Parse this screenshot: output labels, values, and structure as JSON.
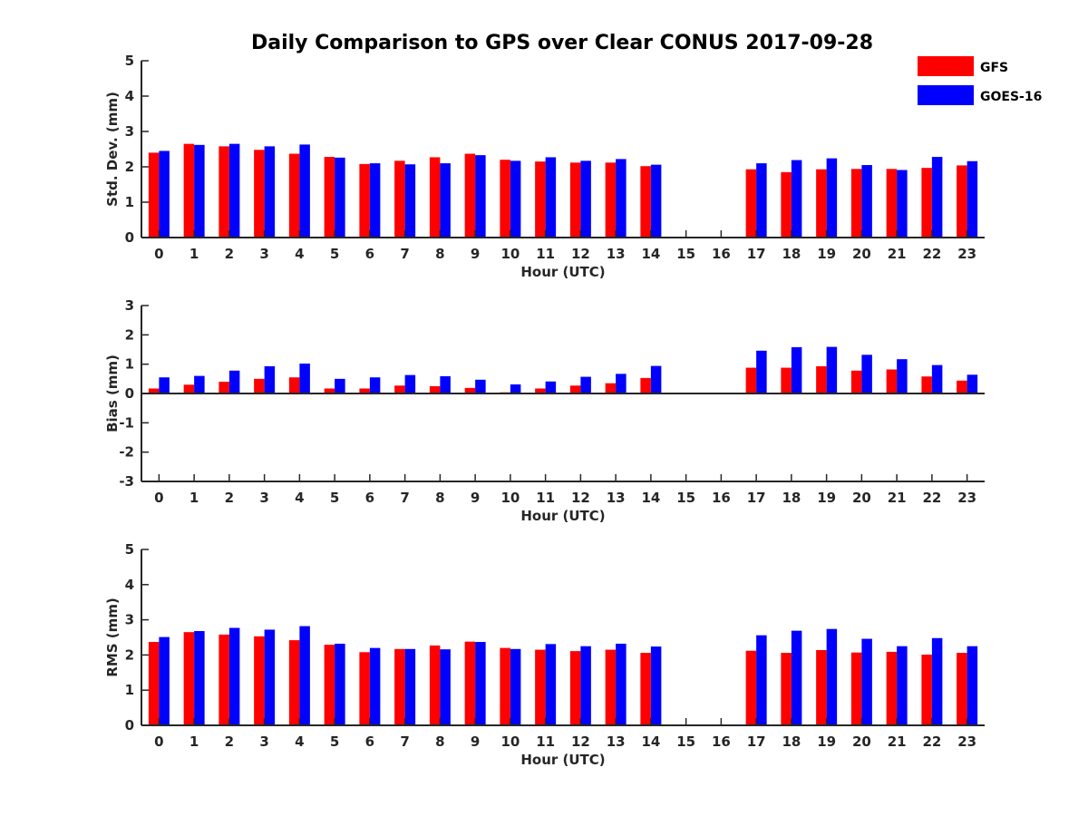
{
  "title": "Daily Comparison to GPS over Clear CONUS 2017-09-28",
  "legend": [
    {
      "name": "GFS",
      "color": "#ff0000"
    },
    {
      "name": "GOES-16",
      "color": "#0000ff"
    }
  ],
  "chart_data": [
    {
      "type": "bar",
      "ylabel": "Std. Dev. (mm)",
      "xlabel": "Hour (UTC)",
      "ylim": [
        0,
        5
      ],
      "yticks": [
        0,
        1,
        2,
        3,
        4,
        5
      ],
      "categories": [
        "0",
        "1",
        "2",
        "3",
        "4",
        "5",
        "6",
        "7",
        "8",
        "9",
        "10",
        "11",
        "12",
        "13",
        "14",
        "15",
        "16",
        "17",
        "18",
        "19",
        "20",
        "21",
        "22",
        "23"
      ],
      "series": [
        {
          "name": "GFS",
          "values": [
            2.4,
            2.65,
            2.58,
            2.48,
            2.37,
            2.28,
            2.08,
            2.17,
            2.27,
            2.37,
            2.2,
            2.15,
            2.12,
            2.12,
            2.02,
            null,
            null,
            1.93,
            1.85,
            1.93,
            1.94,
            1.94,
            1.97,
            2.04
          ]
        },
        {
          "name": "GOES-16",
          "values": [
            2.45,
            2.62,
            2.65,
            2.58,
            2.63,
            2.26,
            2.1,
            2.07,
            2.1,
            2.33,
            2.17,
            2.27,
            2.17,
            2.22,
            2.06,
            null,
            null,
            2.1,
            2.19,
            2.24,
            2.05,
            1.91,
            2.28,
            2.16
          ]
        }
      ]
    },
    {
      "type": "bar",
      "ylabel": "Bias (mm)",
      "xlabel": "Hour (UTC)",
      "ylim": [
        -3,
        3
      ],
      "yticks": [
        -3,
        -2,
        -1,
        0,
        1,
        2,
        3
      ],
      "categories": [
        "0",
        "1",
        "2",
        "3",
        "4",
        "5",
        "6",
        "7",
        "8",
        "9",
        "10",
        "11",
        "12",
        "13",
        "14",
        "15",
        "16",
        "17",
        "18",
        "19",
        "20",
        "21",
        "22",
        "23"
      ],
      "series": [
        {
          "name": "GFS",
          "values": [
            0.17,
            0.3,
            0.4,
            0.5,
            0.55,
            0.17,
            0.17,
            0.27,
            0.25,
            0.19,
            0.04,
            0.17,
            0.27,
            0.35,
            0.53,
            null,
            null,
            0.88,
            0.88,
            0.93,
            0.78,
            0.82,
            0.58,
            0.44
          ]
        },
        {
          "name": "GOES-16",
          "values": [
            0.55,
            0.6,
            0.78,
            0.93,
            1.02,
            0.5,
            0.55,
            0.63,
            0.59,
            0.47,
            0.31,
            0.41,
            0.57,
            0.67,
            0.94,
            null,
            null,
            1.46,
            1.58,
            1.59,
            1.32,
            1.17,
            0.97,
            0.64
          ]
        }
      ]
    },
    {
      "type": "bar",
      "ylabel": "RMS (mm)",
      "xlabel": "Hour (UTC)",
      "ylim": [
        0,
        5
      ],
      "yticks": [
        0,
        1,
        2,
        3,
        4,
        5
      ],
      "categories": [
        "0",
        "1",
        "2",
        "3",
        "4",
        "5",
        "6",
        "7",
        "8",
        "9",
        "10",
        "11",
        "12",
        "13",
        "14",
        "15",
        "16",
        "17",
        "18",
        "19",
        "20",
        "21",
        "22",
        "23"
      ],
      "series": [
        {
          "name": "GFS",
          "values": [
            2.37,
            2.65,
            2.58,
            2.53,
            2.42,
            2.29,
            2.08,
            2.17,
            2.27,
            2.38,
            2.2,
            2.15,
            2.11,
            2.15,
            2.06,
            null,
            null,
            2.12,
            2.06,
            2.14,
            2.07,
            2.09,
            2.01,
            2.06
          ]
        },
        {
          "name": "GOES-16",
          "values": [
            2.51,
            2.68,
            2.77,
            2.72,
            2.82,
            2.32,
            2.2,
            2.17,
            2.16,
            2.37,
            2.17,
            2.31,
            2.25,
            2.32,
            2.24,
            null,
            null,
            2.56,
            2.69,
            2.74,
            2.46,
            2.25,
            2.48,
            2.25
          ]
        }
      ]
    }
  ]
}
